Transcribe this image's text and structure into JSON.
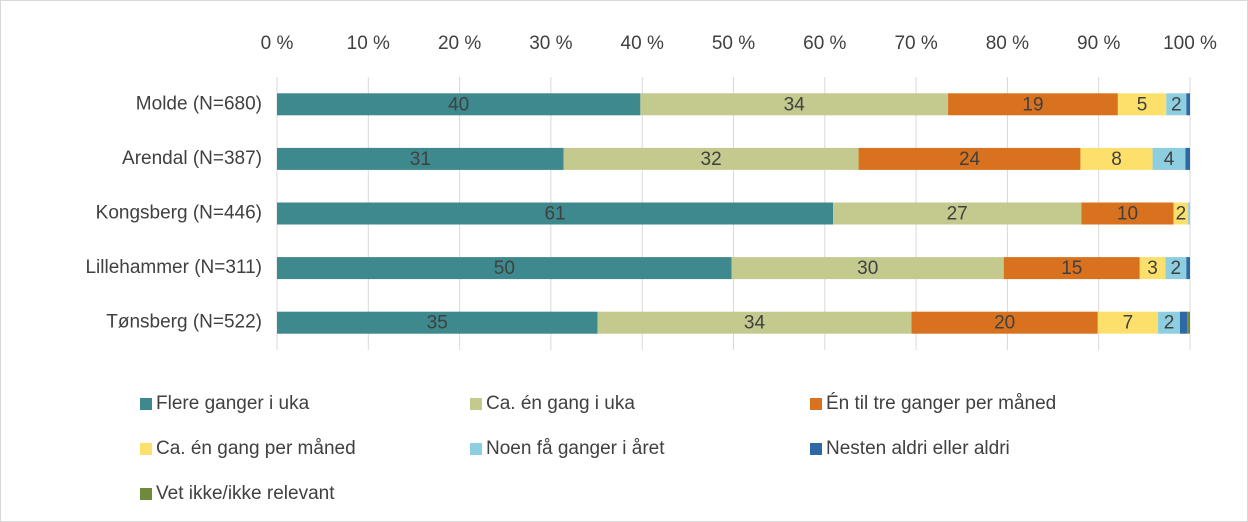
{
  "chart_data": {
    "type": "stacked_barh",
    "categories": [
      "Molde (N=680)",
      "Arendal (N=387)",
      "Kongsberg (N=446)",
      "Lillehammer (N=311)",
      "Tønsberg (N=522)"
    ],
    "series": [
      {
        "name": "Flere ganger i uka",
        "color": "#3d898d",
        "values": [
          39.8,
          31.4,
          60.9,
          49.8,
          35.1
        ],
        "value_labels": [
          "40",
          "31",
          "61",
          "50",
          "35"
        ]
      },
      {
        "name": "Ca. én gang i uka",
        "color": "#c4c98e",
        "values": [
          33.7,
          32.3,
          27.2,
          29.8,
          34.4
        ],
        "value_labels": [
          "34",
          "32",
          "27",
          "30",
          "34"
        ]
      },
      {
        "name": "Én til tre ganger per måned",
        "color": "#d8721f",
        "values": [
          18.6,
          24.3,
          10.1,
          14.9,
          20.4
        ],
        "value_labels": [
          "19",
          "24",
          "10",
          "15",
          "20"
        ]
      },
      {
        "name": "Ca. én gang per måned",
        "color": "#fde06b",
        "values": [
          5.3,
          7.9,
          1.6,
          2.8,
          6.6
        ],
        "value_labels": [
          "5",
          "8",
          "2",
          "3",
          "7"
        ]
      },
      {
        "name": "Noen få ganger i året",
        "color": "#8dcfe0",
        "values": [
          2.2,
          3.6,
          0.2,
          2.3,
          2.4
        ],
        "value_labels": [
          "2",
          "4",
          null,
          "2",
          "2"
        ]
      },
      {
        "name": "Nesten aldri eller aldri",
        "color": "#2e69a5",
        "values": [
          0.4,
          0.5,
          0,
          0.4,
          0.8
        ],
        "value_labels": [
          null,
          null,
          null,
          null,
          null
        ]
      },
      {
        "name": "Vet ikke/ikke relevant",
        "color": "#6e8a3a",
        "values": [
          0,
          0,
          0,
          0,
          0.3
        ],
        "value_labels": [
          null,
          null,
          null,
          null,
          null
        ]
      }
    ],
    "xlim": [
      0,
      100
    ],
    "xticks": [
      {
        "value": 0,
        "label": "0 %"
      },
      {
        "value": 10,
        "label": "10 %"
      },
      {
        "value": 20,
        "label": "20 %"
      },
      {
        "value": 30,
        "label": "30 %"
      },
      {
        "value": 40,
        "label": "40 %"
      },
      {
        "value": 50,
        "label": "50 %"
      },
      {
        "value": 60,
        "label": "60 %"
      },
      {
        "value": 70,
        "label": "70 %"
      },
      {
        "value": 80,
        "label": "80 %"
      },
      {
        "value": 90,
        "label": "90 %"
      },
      {
        "value": 100,
        "label": "100 %"
      }
    ],
    "grid": true
  }
}
